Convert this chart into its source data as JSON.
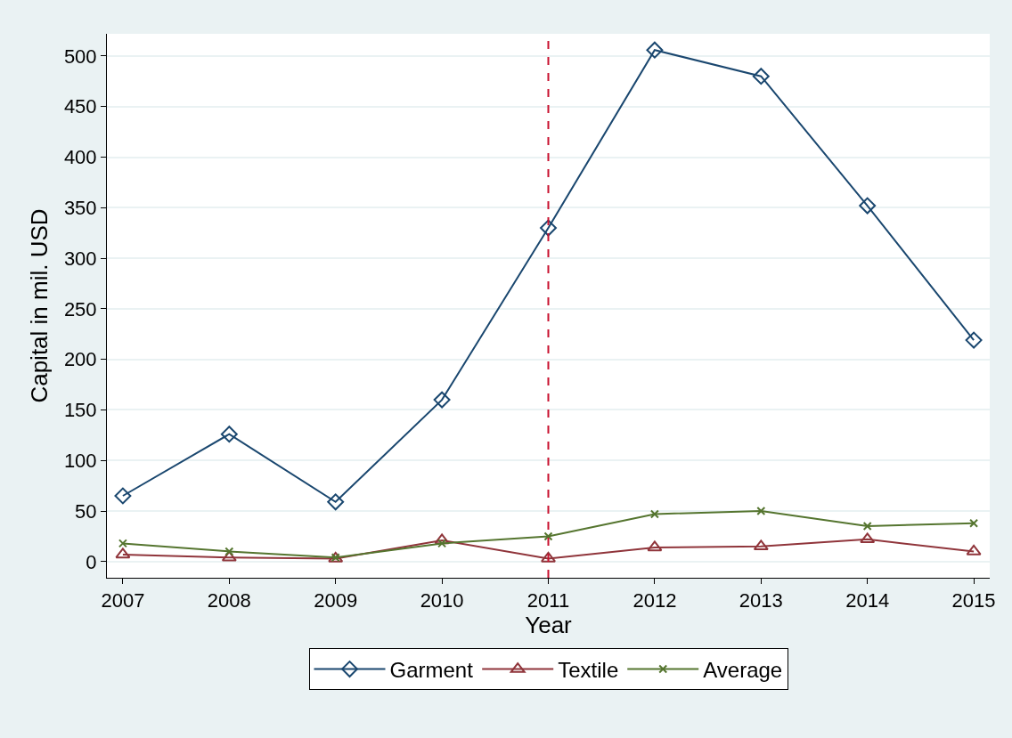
{
  "chart_data": {
    "type": "line",
    "xlabel": "Year",
    "ylabel": "Capital in mil. USD",
    "x": [
      2007,
      2008,
      2009,
      2010,
      2011,
      2012,
      2013,
      2014,
      2015
    ],
    "series": [
      {
        "name": "Garment",
        "color": "#1a476f",
        "marker": "diamond",
        "values": [
          65,
          126,
          59,
          160,
          330,
          506,
          480,
          352,
          219
        ]
      },
      {
        "name": "Textile",
        "color": "#90353b",
        "marker": "triangle",
        "values": [
          7,
          4,
          3,
          21,
          3,
          14,
          15,
          22,
          10
        ]
      },
      {
        "name": "Average",
        "color": "#55752f",
        "marker": "cross",
        "values": [
          18,
          10,
          4,
          18,
          25,
          47,
          50,
          35,
          38
        ]
      }
    ],
    "xlim": [
      2006.85,
      2015.15
    ],
    "xticks": [
      2007,
      2008,
      2009,
      2010,
      2011,
      2012,
      2013,
      2014,
      2015
    ],
    "ylim": [
      -16,
      522
    ],
    "yticks": [
      0,
      50,
      100,
      150,
      200,
      250,
      300,
      350,
      400,
      450,
      500
    ],
    "ref_lines": [
      {
        "axis": "x",
        "value": 2011,
        "color": "#c8102e",
        "line_style": "dashed"
      }
    ],
    "grid": "y",
    "legend": "bottom",
    "line_style": "solid"
  }
}
